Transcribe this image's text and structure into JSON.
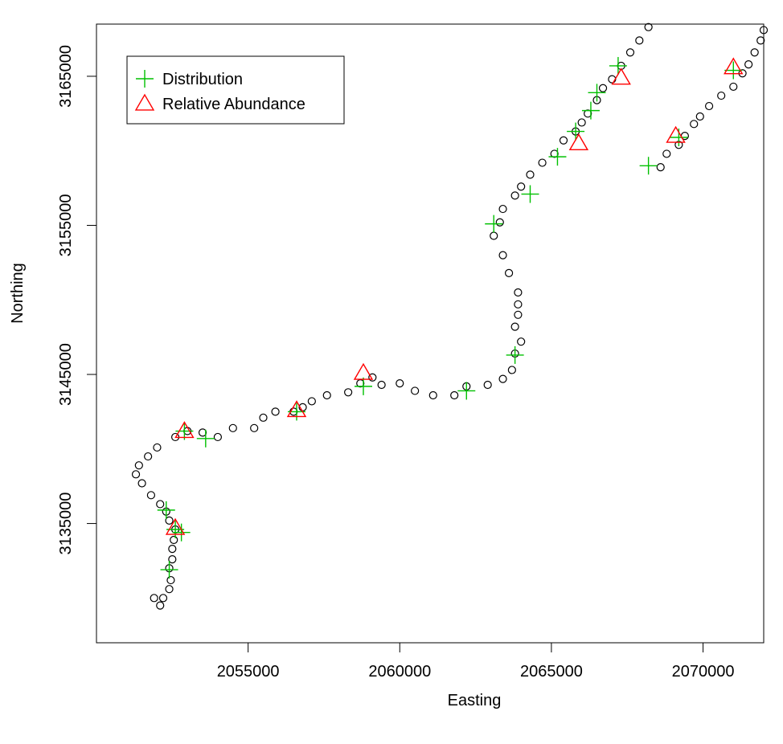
{
  "chart_data": {
    "type": "scatter",
    "title": "",
    "xlabel": "Easting",
    "ylabel": "Northing",
    "xlim": [
      2050000,
      2072000
    ],
    "ylim": [
      3127000,
      3168500
    ],
    "x_ticks": [
      2055000,
      2060000,
      2065000,
      2070000
    ],
    "x_tick_labels": [
      "2055000",
      "2060000",
      "2065000",
      "2070000"
    ],
    "y_ticks": [
      3135000,
      3145000,
      3155000,
      3165000
    ],
    "y_tick_labels": [
      "3135000",
      "3145000",
      "3155000",
      "3165000"
    ],
    "legend_position": "top-left",
    "legend": [
      {
        "label": "Distribution",
        "symbol": "plus",
        "color": "#00c000"
      },
      {
        "label": "Relative Abundance",
        "symbol": "triangle",
        "color": "#ff0000"
      }
    ],
    "series": [
      {
        "symbol": "circle",
        "color": "#000000",
        "points": [
          [
            2051900,
            3130000
          ],
          [
            2052100,
            3129500
          ],
          [
            2052200,
            3130000
          ],
          [
            2052400,
            3130600
          ],
          [
            2052450,
            3131200
          ],
          [
            2052400,
            3132000
          ],
          [
            2052500,
            3132600
          ],
          [
            2052500,
            3133300
          ],
          [
            2052550,
            3133900
          ],
          [
            2052600,
            3134600
          ],
          [
            2052400,
            3135200
          ],
          [
            2052300,
            3135800
          ],
          [
            2052100,
            3136300
          ],
          [
            2051800,
            3136900
          ],
          [
            2051500,
            3137700
          ],
          [
            2051300,
            3138300
          ],
          [
            2051400,
            3138900
          ],
          [
            2051700,
            3139500
          ],
          [
            2052000,
            3140100
          ],
          [
            2052600,
            3140800
          ],
          [
            2053000,
            3141200
          ],
          [
            2053500,
            3141100
          ],
          [
            2054000,
            3140800
          ],
          [
            2054500,
            3141400
          ],
          [
            2055200,
            3141400
          ],
          [
            2055500,
            3142100
          ],
          [
            2055900,
            3142500
          ],
          [
            2056500,
            3142500
          ],
          [
            2056800,
            3142800
          ],
          [
            2057100,
            3143200
          ],
          [
            2057600,
            3143600
          ],
          [
            2058300,
            3143800
          ],
          [
            2058700,
            3144400
          ],
          [
            2059100,
            3144800
          ],
          [
            2059400,
            3144300
          ],
          [
            2060000,
            3144400
          ],
          [
            2060500,
            3143900
          ],
          [
            2061100,
            3143600
          ],
          [
            2061800,
            3143600
          ],
          [
            2062200,
            3144200
          ],
          [
            2062900,
            3144300
          ],
          [
            2063400,
            3144700
          ],
          [
            2063700,
            3145300
          ],
          [
            2063800,
            3146400
          ],
          [
            2064000,
            3147200
          ],
          [
            2063800,
            3148200
          ],
          [
            2063900,
            3149000
          ],
          [
            2063900,
            3149700
          ],
          [
            2063900,
            3150500
          ],
          [
            2063600,
            3151800
          ],
          [
            2063400,
            3153000
          ],
          [
            2063100,
            3154300
          ],
          [
            2063300,
            3155200
          ],
          [
            2063400,
            3156100
          ],
          [
            2063800,
            3157000
          ],
          [
            2064000,
            3157600
          ],
          [
            2064300,
            3158400
          ],
          [
            2064700,
            3159200
          ],
          [
            2065100,
            3159800
          ],
          [
            2065400,
            3160700
          ],
          [
            2065800,
            3161300
          ],
          [
            2066000,
            3161900
          ],
          [
            2066200,
            3162500
          ],
          [
            2066500,
            3163400
          ],
          [
            2066700,
            3164200
          ],
          [
            2067000,
            3164800
          ],
          [
            2067300,
            3165700
          ],
          [
            2067600,
            3166600
          ],
          [
            2067900,
            3167400
          ],
          [
            2068200,
            3168300
          ],
          [
            2068600,
            3158900
          ],
          [
            2068800,
            3159800
          ],
          [
            2069200,
            3160400
          ],
          [
            2069400,
            3161000
          ],
          [
            2069700,
            3161800
          ],
          [
            2069900,
            3162300
          ],
          [
            2070200,
            3163000
          ],
          [
            2070600,
            3163700
          ],
          [
            2071000,
            3164300
          ],
          [
            2071300,
            3165200
          ],
          [
            2071500,
            3165800
          ],
          [
            2071700,
            3166600
          ],
          [
            2071900,
            3167400
          ],
          [
            2072000,
            3168100
          ]
        ]
      },
      {
        "name": "Distribution",
        "symbol": "plus",
        "color": "#00c000",
        "points": [
          [
            2052300,
            3135900
          ],
          [
            2052600,
            3134600
          ],
          [
            2052800,
            3134400
          ],
          [
            2052400,
            3131900
          ],
          [
            2052900,
            3141200
          ],
          [
            2053600,
            3140700
          ],
          [
            2056600,
            3142500
          ],
          [
            2058800,
            3144200
          ],
          [
            2062200,
            3143900
          ],
          [
            2063100,
            3155100
          ],
          [
            2063800,
            3146300
          ],
          [
            2064300,
            3157100
          ],
          [
            2065200,
            3159600
          ],
          [
            2065800,
            3161300
          ],
          [
            2066300,
            3162700
          ],
          [
            2066500,
            3163900
          ],
          [
            2067200,
            3165700
          ],
          [
            2068200,
            3159000
          ],
          [
            2069200,
            3160900
          ],
          [
            2071000,
            3165400
          ]
        ]
      },
      {
        "name": "Relative Abundance",
        "symbol": "triangle",
        "color": "#ff0000",
        "points": [
          [
            2052600,
            3134700
          ],
          [
            2052900,
            3141200
          ],
          [
            2056600,
            3142600
          ],
          [
            2058800,
            3145100
          ],
          [
            2065900,
            3160500
          ],
          [
            2067300,
            3164900
          ],
          [
            2069100,
            3161000
          ],
          [
            2071000,
            3165600
          ]
        ]
      }
    ]
  }
}
